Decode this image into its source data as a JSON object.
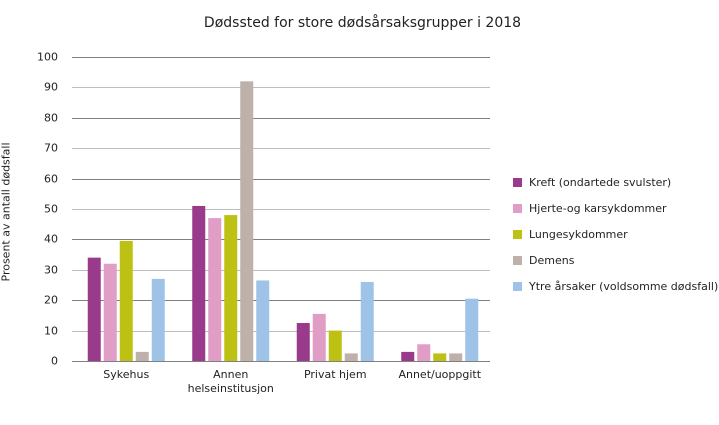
{
  "chart_data": {
    "type": "bar",
    "title": "Dødssted for store dødsårsaksgrupper i 2018",
    "xlabel": "",
    "ylabel": "Prosent av antall dødsfall",
    "ylim": [
      0,
      100
    ],
    "yticks": [
      "0",
      "10",
      "20",
      "30",
      "40",
      "50",
      "60",
      "70",
      "80",
      "90",
      "100"
    ],
    "grid": true,
    "legend_position": "right",
    "categories": [
      "Sykehus",
      "Annen helseinstitusjon",
      "Privat hjem",
      "Annet/uoppgitt"
    ],
    "category_lines": [
      [
        "Sykehus"
      ],
      [
        "Annen",
        "helseinstitusjon"
      ],
      [
        "Privat hjem"
      ],
      [
        "Annet/uoppgitt"
      ]
    ],
    "series": [
      {
        "name": "Kreft (ondartede svulster)",
        "color": "#993a8b",
        "values": [
          34,
          51,
          12.5,
          3
        ]
      },
      {
        "name": "Hjerte-og karsykdommer",
        "color": "#e09dc6",
        "values": [
          32,
          47,
          15.5,
          5.5
        ]
      },
      {
        "name": "Lungesykdommer",
        "color": "#bdc113",
        "values": [
          39.5,
          48,
          10,
          2.5
        ]
      },
      {
        "name": "Demens",
        "color": "#bdb1aa",
        "values": [
          3,
          92,
          2.5,
          2.5
        ]
      },
      {
        "name": "Ytre årsaker (voldsomme dødsfall)",
        "color": "#9ec3e6",
        "values": [
          27,
          26.5,
          26,
          20.5
        ]
      }
    ]
  }
}
